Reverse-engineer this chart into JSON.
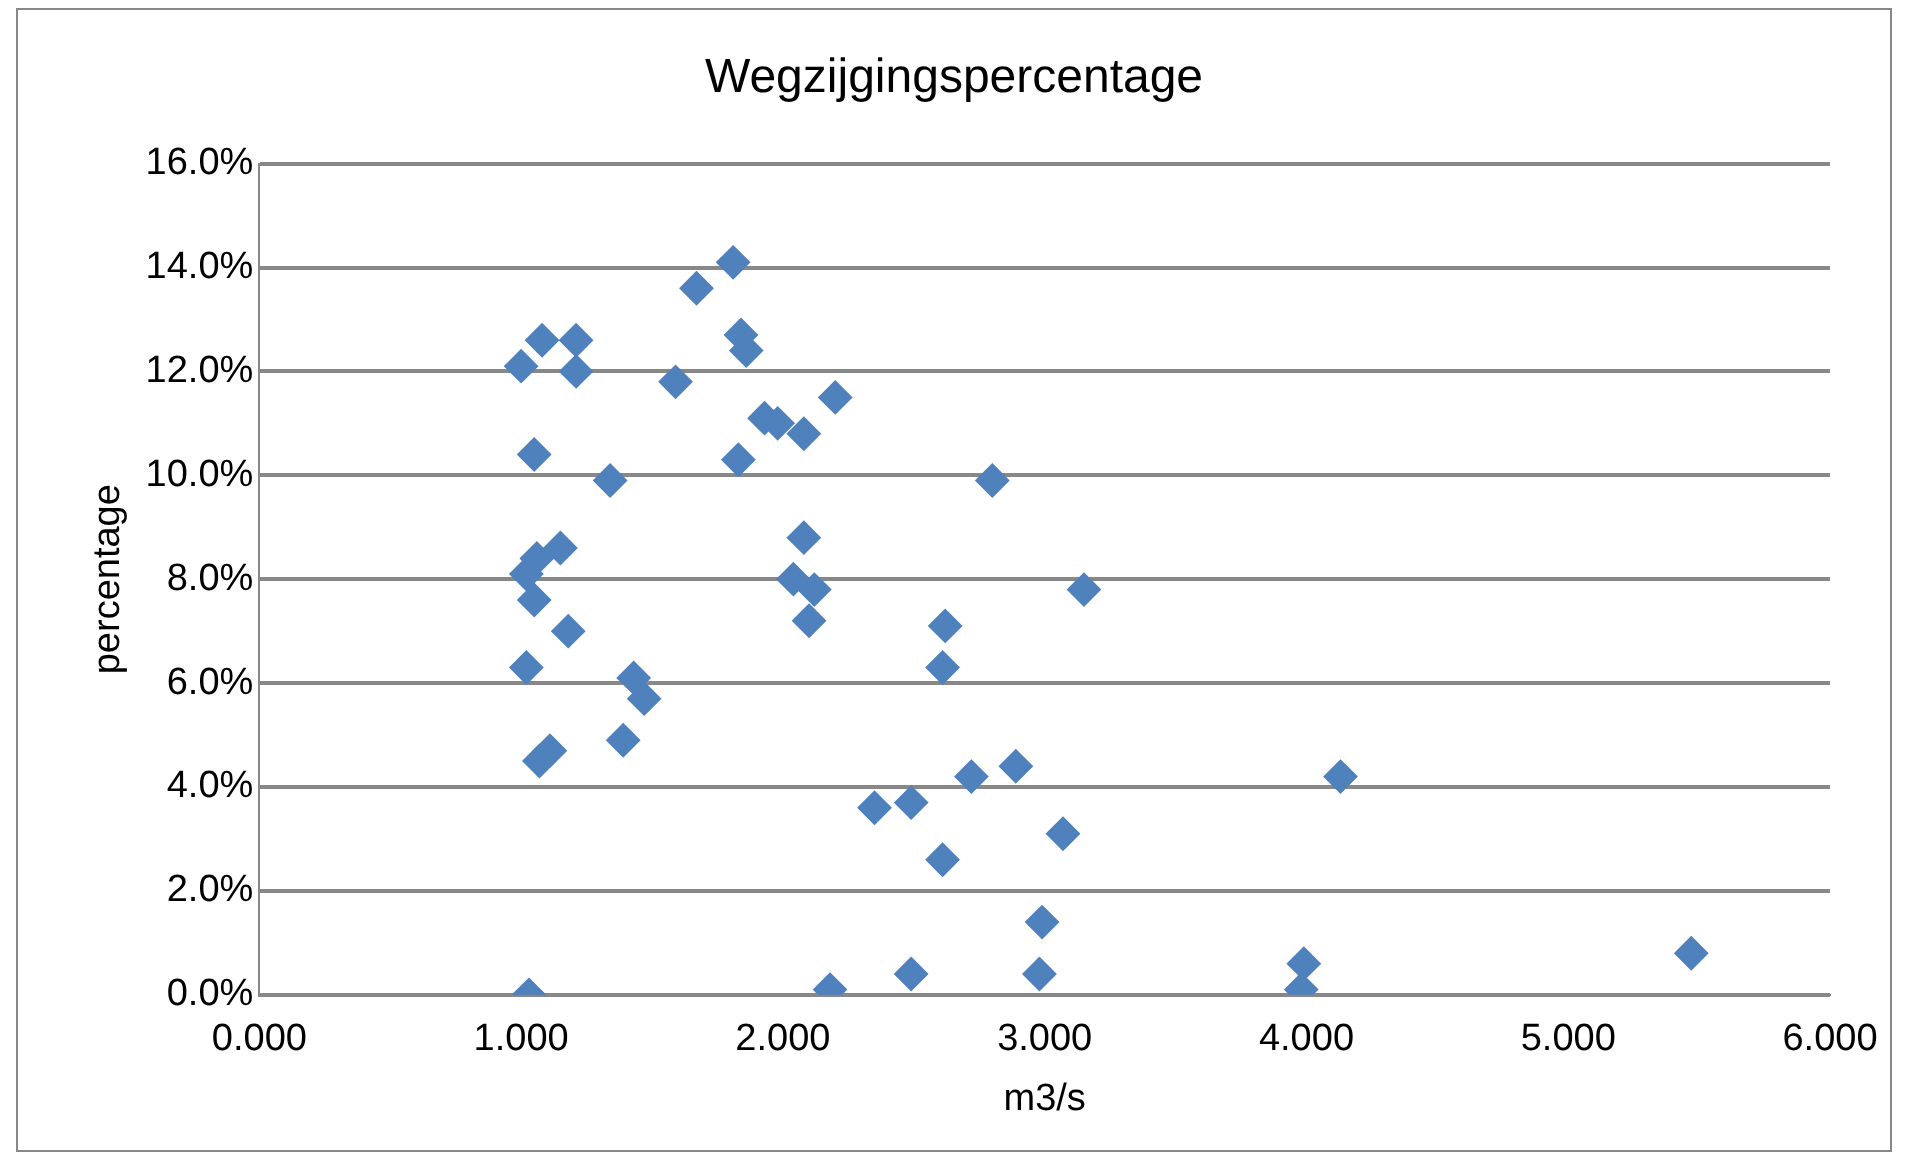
{
  "chart_data": {
    "type": "scatter",
    "title": "Wegzijgingspercentage",
    "xlabel": "m3/s",
    "ylabel": "percentage",
    "marker": "diamond",
    "grid": "y",
    "legend": false,
    "xlim": [
      0,
      6
    ],
    "xticks": [
      {
        "value": 0,
        "label": "0.000"
      },
      {
        "value": 1,
        "label": "1.000"
      },
      {
        "value": 2,
        "label": "2.000"
      },
      {
        "value": 3,
        "label": "3.000"
      },
      {
        "value": 4,
        "label": "4.000"
      },
      {
        "value": 5,
        "label": "5.000"
      },
      {
        "value": 6,
        "label": "6.000"
      }
    ],
    "ylim": [
      0,
      16
    ],
    "yticks": [
      {
        "value": 0,
        "label": "0.0%"
      },
      {
        "value": 2,
        "label": "2.0%"
      },
      {
        "value": 4,
        "label": "4.0%"
      },
      {
        "value": 6,
        "label": "6.0%"
      },
      {
        "value": 8,
        "label": "8.0%"
      },
      {
        "value": 10,
        "label": "10.0%"
      },
      {
        "value": 12,
        "label": "12.0%"
      },
      {
        "value": 14,
        "label": "14.0%"
      },
      {
        "value": 16,
        "label": "16.0%"
      }
    ],
    "series": [
      {
        "color": "#4f81bd",
        "x": [
          1.0,
          1.08,
          1.21,
          1.21,
          1.05,
          1.34,
          1.59,
          1.67,
          1.81,
          1.84,
          1.86,
          1.83,
          1.93,
          1.98,
          2.08,
          2.2,
          2.08,
          2.04,
          2.12,
          2.1,
          2.8,
          3.15,
          2.62,
          2.61,
          1.02,
          1.06,
          1.13,
          1.15,
          1.05,
          1.18,
          1.02,
          1.43,
          1.47,
          1.39,
          1.11,
          1.07,
          2.35,
          2.49,
          2.72,
          2.89,
          3.07,
          2.61,
          2.99,
          2.98,
          2.49,
          2.18,
          1.03,
          3.99,
          3.98,
          4.13,
          5.47
        ],
        "values": [
          12.1,
          12.6,
          12.6,
          12.0,
          10.4,
          9.9,
          11.8,
          13.6,
          14.1,
          12.7,
          12.4,
          10.3,
          11.1,
          11.0,
          10.8,
          11.5,
          8.8,
          8.0,
          7.8,
          7.2,
          9.9,
          7.8,
          7.1,
          6.3,
          8.1,
          8.4,
          null,
          8.6,
          7.6,
          7.0,
          6.3,
          6.1,
          5.7,
          4.9,
          4.7,
          4.5,
          3.6,
          3.7,
          4.2,
          4.4,
          3.1,
          2.6,
          1.4,
          0.4,
          0.4,
          0.1,
          0.0,
          0.6,
          0.1,
          4.2,
          0.8
        ]
      }
    ]
  }
}
